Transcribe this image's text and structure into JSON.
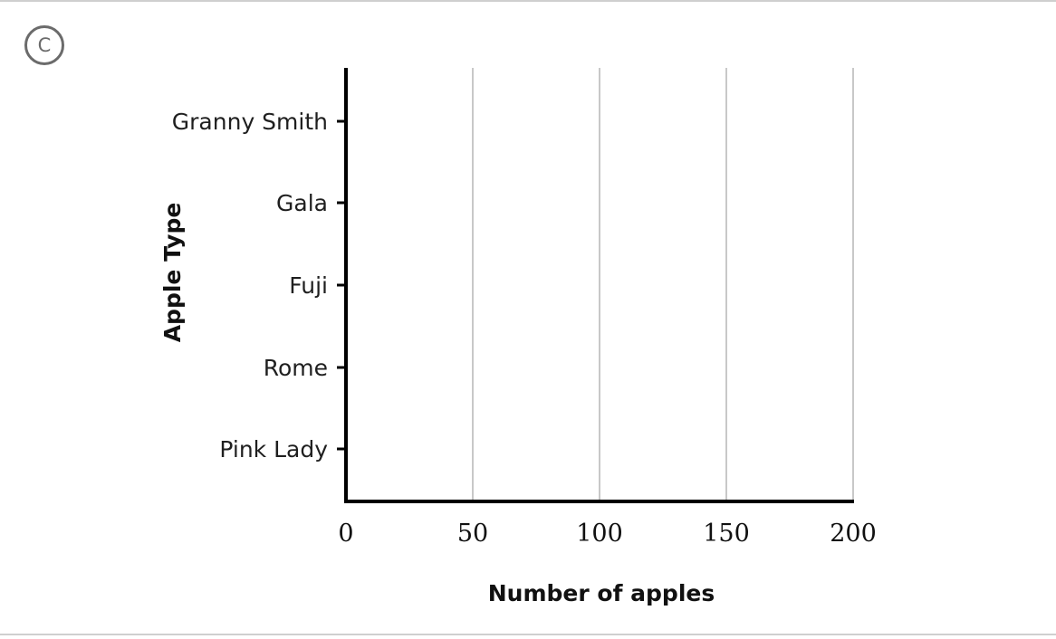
{
  "option_badge": "C",
  "chart_data": {
    "type": "bar",
    "orientation": "horizontal",
    "categories": [
      "Granny Smith",
      "Gala",
      "Fuji",
      "Rome",
      "Pink Lady"
    ],
    "values": [
      null,
      null,
      null,
      null,
      null
    ],
    "xlabel": "Number of apples",
    "ylabel": "Apple Type",
    "xlim": [
      0,
      200
    ],
    "x_ticks": [
      0,
      50,
      100,
      150,
      200
    ],
    "grid": "vertical",
    "colors": {
      "axis": "#000000",
      "grid": "#c8c8c8"
    }
  }
}
